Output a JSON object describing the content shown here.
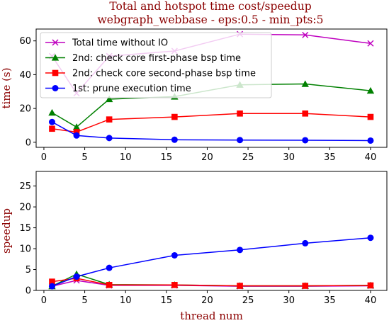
{
  "figure": {
    "title_line1": "Total and hotspot time cost/speedup",
    "title_line2": "webgraph_webbase - eps:0.5 - min_pts:5"
  },
  "chart_data": [
    {
      "type": "line",
      "ylabel": "time (s)",
      "xlim": [
        -0.95,
        42.0
      ],
      "ylim": [
        -3.0,
        67.0
      ],
      "xticks": [
        0,
        5,
        10,
        15,
        20,
        25,
        30,
        35,
        40
      ],
      "yticks": [
        0,
        20,
        40,
        60
      ],
      "grid": false,
      "legend_position": "upper-left",
      "x": [
        1,
        4,
        8,
        16,
        24,
        32,
        40
      ],
      "series": [
        {
          "name": "Total time without IO",
          "color": "#bf00bf",
          "marker": "x",
          "values": [
            51,
            29,
            51,
            54,
            64,
            63.5,
            58.5
          ]
        },
        {
          "name": "2nd: check core first-phase bsp time",
          "color": "#008000",
          "marker": "triangle",
          "values": [
            17.5,
            9,
            25.5,
            27,
            34,
            34.5,
            30.5
          ]
        },
        {
          "name": "2nd: check core second-phase bsp time",
          "color": "#ff0000",
          "marker": "square",
          "values": [
            8,
            6,
            13.5,
            15,
            17,
            17,
            15
          ]
        },
        {
          "name": "1st: prune execution time",
          "color": "#0000ff",
          "marker": "circle",
          "values": [
            12,
            4,
            2.5,
            1.5,
            1.3,
            1.2,
            1
          ]
        }
      ]
    },
    {
      "type": "line",
      "xlabel": "thread num",
      "ylabel": "speedup",
      "xlim": [
        -0.95,
        42.0
      ],
      "ylim": [
        0,
        28.5
      ],
      "xticks": [
        0,
        5,
        10,
        15,
        20,
        25,
        30,
        35,
        40
      ],
      "yticks": [
        0,
        5,
        10,
        15,
        20,
        25
      ],
      "grid": false,
      "x": [
        1,
        4,
        8,
        16,
        24,
        32,
        40
      ],
      "series": [
        {
          "color": "#bf00bf",
          "marker": "x",
          "values": [
            1,
            2.4,
            1.2,
            1.2,
            1.0,
            1.0,
            1.1
          ]
        },
        {
          "color": "#008000",
          "marker": "triangle",
          "values": [
            1,
            3.9,
            1.4,
            1.3,
            1.1,
            1.1,
            1.2
          ]
        },
        {
          "color": "#ff0000",
          "marker": "square",
          "values": [
            2.1,
            2.9,
            1.3,
            1.3,
            1.1,
            1.1,
            1.2
          ]
        },
        {
          "color": "#0000ff",
          "marker": "circle",
          "values": [
            1,
            3.3,
            5.4,
            8.4,
            9.7,
            11.3,
            12.6
          ]
        }
      ]
    }
  ]
}
